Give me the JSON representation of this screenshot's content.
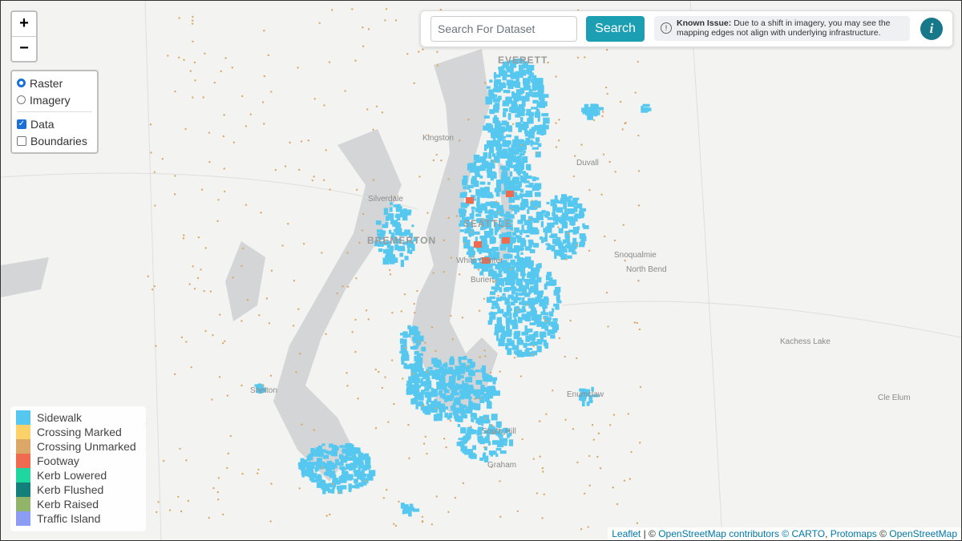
{
  "zoom": {
    "in": "+",
    "out": "−"
  },
  "layers": {
    "base": [
      {
        "label": "Raster",
        "checked": true
      },
      {
        "label": "Imagery",
        "checked": false
      }
    ],
    "overlays": [
      {
        "label": "Data",
        "checked": true
      },
      {
        "label": "Boundaries",
        "checked": false
      }
    ]
  },
  "search": {
    "placeholder": "Search For Dataset",
    "button": "Search"
  },
  "notice": {
    "label": "Known Issue:",
    "text": "Due to a shift in imagery, you may see the mapping edges not align with underlying infrastructure."
  },
  "info_button": "i",
  "legend": [
    {
      "label": "Sidewalk",
      "color": "#56c8f0"
    },
    {
      "label": "Crossing Marked",
      "color": "#fbd26a"
    },
    {
      "label": "Crossing Unmarked",
      "color": "#dba867"
    },
    {
      "label": "Footway",
      "color": "#f06a4f"
    },
    {
      "label": "Kerb Lowered",
      "color": "#1fd69e"
    },
    {
      "label": "Kerb Flushed",
      "color": "#127f7a"
    },
    {
      "label": "Kerb Raised",
      "color": "#8fb46a"
    },
    {
      "label": "Traffic Island",
      "color": "#8c9cf3"
    }
  ],
  "places": [
    "EVERETT",
    "Kingston",
    "Duvall",
    "Silverdale",
    "SEATTLE",
    "BREMERTON",
    "White Center",
    "Burien",
    "Snoqualmie",
    "North Bend",
    "Kachess Lake",
    "Shelton",
    "Enumclaw",
    "Cle Elum",
    "South Hill",
    "Graham"
  ],
  "attribution": [
    "Leaflet",
    " | © ",
    "OpenStreetMap",
    " contributors © ",
    "CARTO",
    ", ",
    "Protomaps",
    " © ",
    "OpenStreetMap"
  ]
}
